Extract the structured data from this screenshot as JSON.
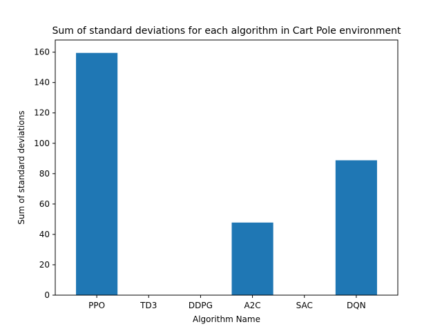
{
  "chart_data": {
    "type": "bar",
    "title": "Sum of standard deviations for each algorithm in Cart Pole environment",
    "xlabel": "Algorithm Name",
    "ylabel": "Sum of standard deviations",
    "categories": [
      "PPO",
      "TD3",
      "DDPG",
      "A2C",
      "SAC",
      "DQN"
    ],
    "values": [
      159.5,
      0,
      0,
      47.8,
      0,
      88.8
    ],
    "ylim": [
      0,
      168
    ],
    "yticks": [
      0,
      20,
      40,
      60,
      80,
      100,
      120,
      140,
      160
    ],
    "grid": false,
    "bar_color": "#1f77b4"
  }
}
